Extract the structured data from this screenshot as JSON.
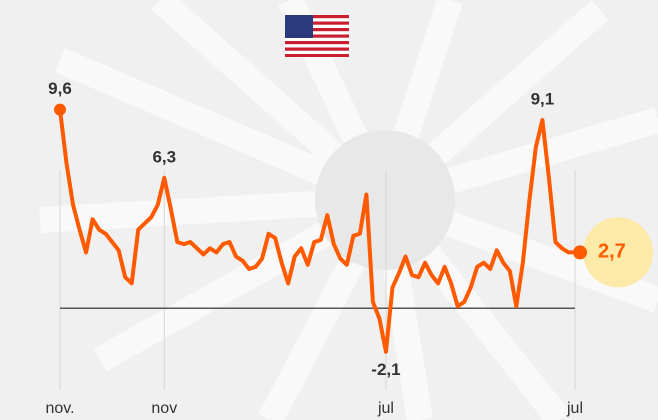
{
  "chart_data": {
    "type": "line",
    "categories": [
      "nov.",
      null,
      null,
      null,
      null,
      null,
      null,
      null,
      null,
      null,
      null,
      null,
      null,
      null,
      null,
      null,
      "nov",
      null,
      null,
      null,
      null,
      null,
      null,
      null,
      null,
      null,
      null,
      null,
      null,
      null,
      null,
      null,
      null,
      null,
      null,
      null,
      null,
      null,
      null,
      null,
      null,
      null,
      null,
      null,
      null,
      null,
      null,
      null,
      null,
      null,
      "jul",
      null,
      null,
      null,
      null,
      null,
      null,
      null,
      null,
      null,
      null,
      null,
      null,
      null,
      null,
      null,
      null,
      null,
      null,
      null,
      null,
      null,
      null,
      null,
      null,
      null,
      null,
      null,
      null,
      "jul"
    ],
    "series": [
      {
        "color": "#ff5a00",
        "values": [
          9.6,
          7.0,
          5.0,
          3.8,
          2.7,
          4.3,
          3.8,
          3.6,
          3.2,
          2.8,
          1.5,
          1.2,
          3.8,
          4.1,
          4.4,
          5.0,
          6.3,
          4.8,
          3.2,
          3.1,
          3.2,
          2.9,
          2.6,
          2.9,
          2.7,
          3.1,
          3.2,
          2.5,
          2.3,
          1.9,
          2.0,
          2.4,
          3.6,
          3.4,
          2.2,
          1.2,
          2.5,
          2.9,
          2.1,
          3.2,
          3.3,
          4.5,
          3.1,
          2.4,
          2.1,
          3.5,
          3.6,
          5.5,
          0.3,
          -0.5,
          -2.1,
          1.0,
          1.7,
          2.5,
          1.6,
          1.5,
          2.2,
          1.6,
          1.2,
          2.0,
          1.2,
          0.1,
          0.3,
          1.0,
          2.0,
          2.2,
          1.9,
          2.8,
          2.2,
          1.8,
          0.1,
          2.2,
          5.2,
          7.8,
          9.1,
          6.3,
          3.2,
          2.9,
          2.7,
          2.7
        ],
        "value_labels": [
          "9,6",
          null,
          null,
          null,
          null,
          null,
          null,
          null,
          null,
          null,
          null,
          null,
          null,
          null,
          null,
          null,
          "6,3",
          null,
          null,
          null,
          null,
          null,
          null,
          null,
          null,
          null,
          null,
          null,
          null,
          null,
          null,
          null,
          null,
          null,
          null,
          null,
          null,
          null,
          null,
          null,
          null,
          null,
          null,
          null,
          null,
          null,
          null,
          null,
          null,
          null,
          "-2,1",
          null,
          null,
          null,
          null,
          null,
          null,
          null,
          null,
          null,
          null,
          null,
          null,
          null,
          null,
          null,
          null,
          null,
          null,
          null,
          null,
          null,
          null,
          null,
          "9,1",
          null,
          null,
          null,
          null,
          "2,7"
        ]
      }
    ],
    "ylim": [
      -4,
      12
    ]
  }
}
